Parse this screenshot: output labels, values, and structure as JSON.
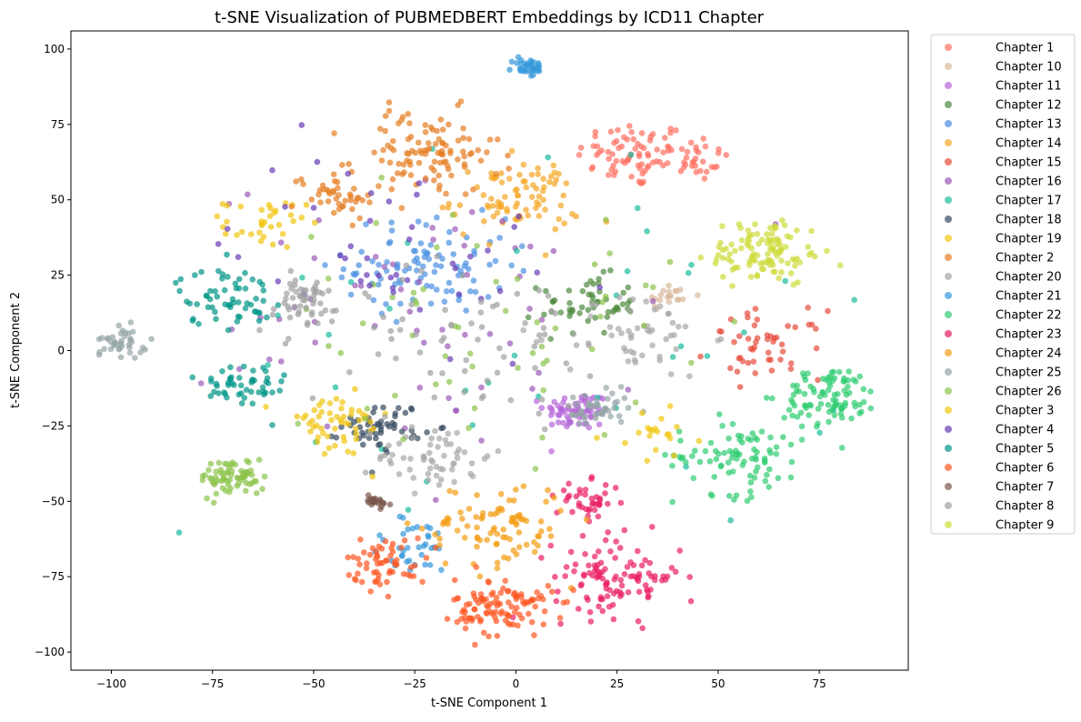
{
  "chart_data": {
    "type": "scatter",
    "title": "t-SNE Visualization of PUBMEDBERT Embeddings by ICD11 Chapter",
    "xlabel": "t-SNE Component 1",
    "ylabel": "t-SNE Component 2",
    "xlim": [
      -110,
      97
    ],
    "ylim": [
      -106,
      106
    ],
    "xticks": [
      -100,
      -75,
      -50,
      -25,
      0,
      25,
      50,
      75
    ],
    "yticks": [
      -100,
      -75,
      -50,
      -25,
      0,
      25,
      50,
      75,
      100
    ],
    "grid": false,
    "legend_position": "outside-right",
    "marker_opacity": 0.7,
    "series": [
      {
        "name": "Chapter 1",
        "color": "#FF6F61",
        "clusters": [
          {
            "c": [
              29,
              65
            ],
            "s": 7,
            "n": 70
          },
          {
            "c": [
              43,
              64
            ],
            "s": 5,
            "n": 35
          }
        ]
      },
      {
        "name": "Chapter 10",
        "color": "#D9B99B",
        "clusters": [
          {
            "c": [
              38,
              18
            ],
            "s": 3,
            "n": 20
          }
        ]
      },
      {
        "name": "Chapter 11",
        "color": "#B565D9",
        "clusters": [
          {
            "c": [
              15,
              -20
            ],
            "s": 4,
            "n": 70
          }
        ]
      },
      {
        "name": "Chapter 12",
        "color": "#4E8A3E",
        "clusters": [
          {
            "c": [
              18,
              15
            ],
            "s": 6,
            "n": 55
          }
        ]
      },
      {
        "name": "Chapter 13",
        "color": "#4A90E2",
        "clusters": [
          {
            "c": [
              -22,
              28
            ],
            "s": 10,
            "n": 100
          }
        ]
      },
      {
        "name": "Chapter 14",
        "color": "#F5A623",
        "clusters": [
          {
            "c": [
              0,
              50
            ],
            "s": 8,
            "n": 85
          }
        ]
      },
      {
        "name": "Chapter 15",
        "color": "#E74C3C",
        "clusters": [
          {
            "c": [
              62,
              2
            ],
            "s": 7,
            "n": 50
          }
        ]
      },
      {
        "name": "Chapter 16",
        "color": "#9B59B6",
        "clusters": [
          {
            "c": [
              -20,
              12
            ],
            "s": 28,
            "n": 60
          }
        ]
      },
      {
        "name": "Chapter 17",
        "color": "#1ABC9C",
        "clusters": [
          {
            "c": [
              0,
              0
            ],
            "s": 40,
            "n": 40
          }
        ]
      },
      {
        "name": "Chapter 18",
        "color": "#34495E",
        "clusters": [
          {
            "c": [
              -33,
              -25
            ],
            "s": 5,
            "n": 55
          }
        ]
      },
      {
        "name": "Chapter 19",
        "color": "#F1C40F",
        "clusters": [
          {
            "c": [
              -62,
              42
            ],
            "s": 5,
            "n": 35
          },
          {
            "c": [
              -45,
              -25
            ],
            "s": 7,
            "n": 55
          }
        ]
      },
      {
        "name": "Chapter 2",
        "color": "#E67E22",
        "clusters": [
          {
            "c": [
              -22,
              65
            ],
            "s": 9,
            "n": 110
          },
          {
            "c": [
              -45,
              52
            ],
            "s": 5,
            "n": 40
          }
        ]
      },
      {
        "name": "Chapter 20",
        "color": "#A6A6A6",
        "clusters": [
          {
            "c": [
              -20,
              -35
            ],
            "s": 7,
            "n": 60
          },
          {
            "c": [
              30,
              5
            ],
            "s": 9,
            "n": 55
          }
        ]
      },
      {
        "name": "Chapter 21",
        "color": "#3498DB",
        "clusters": [
          {
            "c": [
              3,
              94
            ],
            "s": 2,
            "n": 35
          },
          {
            "c": [
              -25,
              -65
            ],
            "s": 6,
            "n": 35
          }
        ]
      },
      {
        "name": "Chapter 22",
        "color": "#2ECC71",
        "clusters": [
          {
            "c": [
              78,
              -15
            ],
            "s": 6,
            "n": 90
          },
          {
            "c": [
              55,
              -35
            ],
            "s": 8,
            "n": 90
          }
        ]
      },
      {
        "name": "Chapter 23",
        "color": "#E91E63",
        "clusters": [
          {
            "c": [
              25,
              -75
            ],
            "s": 8,
            "n": 110
          },
          {
            "c": [
              18,
              -50
            ],
            "s": 4,
            "n": 40
          }
        ]
      },
      {
        "name": "Chapter 24",
        "color": "#F39C12",
        "clusters": [
          {
            "c": [
              -5,
              -58
            ],
            "s": 9,
            "n": 90
          }
        ]
      },
      {
        "name": "Chapter 25",
        "color": "#95A5A6",
        "clusters": [
          {
            "c": [
              -97,
              3
            ],
            "s": 3,
            "n": 40
          },
          {
            "c": [
              20,
              -20
            ],
            "s": 4,
            "n": 45
          }
        ]
      },
      {
        "name": "Chapter 26",
        "color": "#8BC34A",
        "clusters": [
          {
            "c": [
              -70,
              -42
            ],
            "s": 4,
            "n": 70
          },
          {
            "c": [
              -10,
              10
            ],
            "s": 25,
            "n": 60
          }
        ]
      },
      {
        "name": "Chapter 3",
        "color": "#F2C811",
        "clusters": [
          {
            "c": [
              35,
              -28
            ],
            "s": 5,
            "n": 20
          }
        ]
      },
      {
        "name": "Chapter 4",
        "color": "#673AB7",
        "clusters": [
          {
            "c": [
              -30,
              35
            ],
            "s": 20,
            "n": 45
          }
        ]
      },
      {
        "name": "Chapter 5",
        "color": "#009688",
        "clusters": [
          {
            "c": [
              -72,
              18
            ],
            "s": 6,
            "n": 60
          },
          {
            "c": [
              -68,
              -12
            ],
            "s": 6,
            "n": 50
          }
        ]
      },
      {
        "name": "Chapter 6",
        "color": "#FF5722",
        "clusters": [
          {
            "c": [
              -3,
              -85
            ],
            "s": 6,
            "n": 110
          },
          {
            "c": [
              -32,
              -70
            ],
            "s": 5,
            "n": 60
          }
        ]
      },
      {
        "name": "Chapter 7",
        "color": "#795548",
        "clusters": [
          {
            "c": [
              -35,
              -50
            ],
            "s": 2,
            "n": 20
          }
        ]
      },
      {
        "name": "Chapter 8",
        "color": "#A0A0A0",
        "clusters": [
          {
            "c": [
              -53,
              15
            ],
            "s": 6,
            "n": 55
          },
          {
            "c": [
              -10,
              5
            ],
            "s": 15,
            "n": 60
          }
        ]
      },
      {
        "name": "Chapter 9",
        "color": "#CDDC39",
        "clusters": [
          {
            "c": [
              62,
              33
            ],
            "s": 7,
            "n": 110
          }
        ]
      }
    ]
  }
}
